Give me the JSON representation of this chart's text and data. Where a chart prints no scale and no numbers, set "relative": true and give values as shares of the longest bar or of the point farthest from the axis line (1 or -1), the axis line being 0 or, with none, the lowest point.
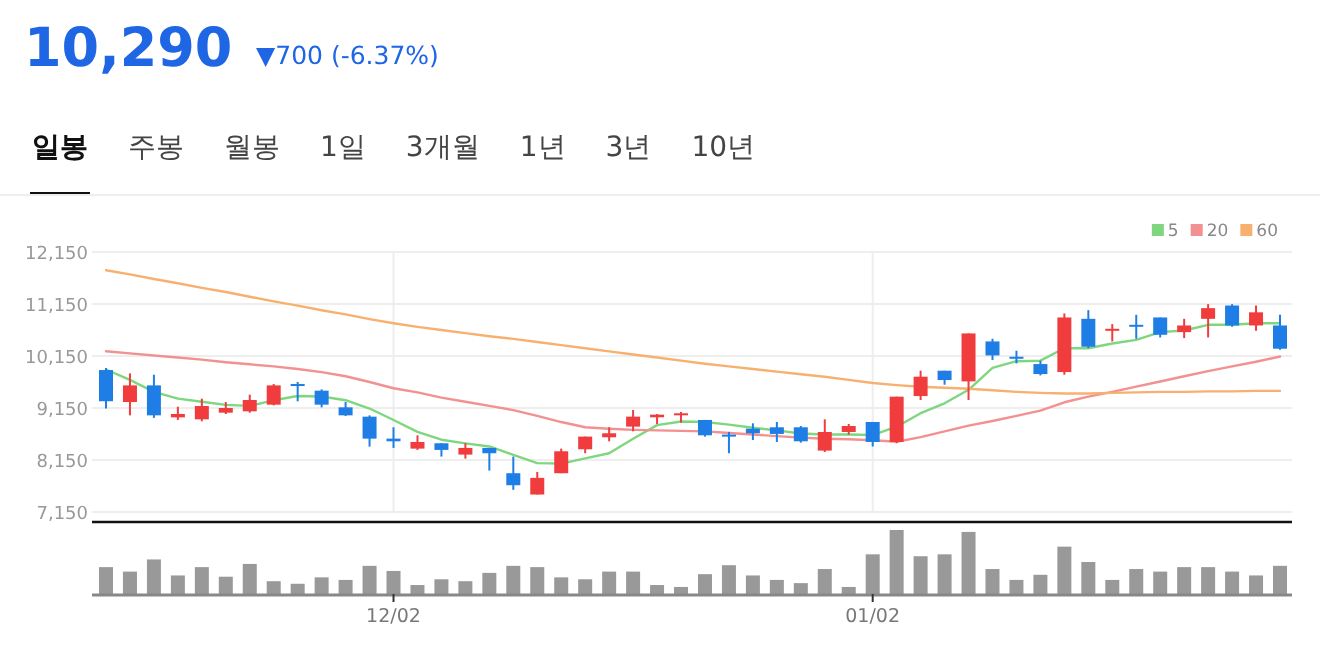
{
  "chart_data": [
    {
      "type": "candlestick",
      "title": "10,290",
      "subtitle": "▼700 (-6.37%)",
      "annotations": [
        "일봉",
        "주봉",
        "월봉",
        "1일",
        "3개월",
        "1년",
        "3년",
        "10년"
      ],
      "categories": [
        null,
        null,
        null,
        null,
        null,
        null,
        null,
        null,
        null,
        null,
        null,
        null,
        null,
        null,
        null,
        null,
        null,
        null,
        null,
        null,
        null,
        null,
        null,
        null,
        null,
        null,
        null,
        null,
        null,
        null,
        null,
        null,
        null,
        null,
        null,
        null,
        null,
        null,
        null,
        null,
        null,
        null,
        null,
        null,
        null,
        null,
        null,
        null,
        null,
        null
      ],
      "ohlc": [
        [
          9880,
          9920,
          9140,
          9280
        ],
        [
          9265,
          9816,
          9009,
          9585
        ],
        [
          9585,
          9790,
          8960,
          9009
        ],
        [
          8970,
          9175,
          8920,
          9035
        ],
        [
          8932,
          9330,
          8894,
          9188
        ],
        [
          9060,
          9265,
          9035,
          9150
        ],
        [
          9086,
          9406,
          9060,
          9304
        ],
        [
          9214,
          9611,
          9200,
          9585
        ],
        [
          9611,
          9650,
          9278,
          9585
        ],
        [
          9483,
          9508,
          9163,
          9214
        ],
        [
          9163,
          9265,
          8996,
          9009
        ],
        [
          8983,
          9009,
          8408,
          8561
        ],
        [
          8561,
          8779,
          8382,
          8510
        ],
        [
          8369,
          8625,
          8344,
          8497
        ],
        [
          8472,
          8472,
          8216,
          8344
        ],
        [
          8254,
          8472,
          8177,
          8382
        ],
        [
          8382,
          8382,
          7947,
          8280
        ],
        [
          7896,
          8216,
          7576,
          7665
        ],
        [
          7486,
          7921,
          7486,
          7806
        ],
        [
          7896,
          8369,
          7896,
          8318
        ],
        [
          8356,
          8600,
          8280,
          8600
        ],
        [
          8587,
          8779,
          8510,
          8664
        ],
        [
          8792,
          9112,
          8702,
          8984
        ],
        [
          8971,
          9035,
          8843,
          9022
        ],
        [
          9010,
          9073,
          8868,
          9048
        ],
        [
          8920,
          8920,
          8600,
          8625
        ],
        [
          8638,
          8690,
          8280,
          8600
        ],
        [
          8753,
          8856,
          8535,
          8664
        ],
        [
          8779,
          8881,
          8497,
          8651
        ],
        [
          8779,
          8804,
          8484,
          8510
        ],
        [
          8331,
          8932,
          8305,
          8689
        ],
        [
          8689,
          8843,
          8638,
          8804
        ],
        [
          8881,
          8881,
          8408,
          8497
        ],
        [
          8497,
          9368,
          8472,
          9368
        ],
        [
          9380,
          9867,
          9304,
          9752
        ],
        [
          9867,
          9867,
          9598,
          9688
        ],
        [
          9662,
          10584,
          9304,
          10584
        ],
        [
          10430,
          10481,
          10072,
          10161
        ],
        [
          10136,
          10251,
          10008,
          10097
        ],
        [
          9995,
          10059,
          9777,
          9803
        ],
        [
          9841,
          10968,
          9790,
          10891
        ],
        [
          10865,
          11032,
          10302,
          10328
        ],
        [
          10635,
          10763,
          10430,
          10673
        ],
        [
          10750,
          10942,
          10481,
          10712
        ],
        [
          10891,
          10891,
          10507,
          10558
        ],
        [
          10609,
          10865,
          10494,
          10737
        ],
        [
          10865,
          11147,
          10507,
          11070
        ],
        [
          11121,
          11147,
          10712,
          10737
        ],
        [
          10737,
          11121,
          10635,
          10990
        ],
        [
          10737,
          10942,
          10270,
          10290
        ]
      ],
      "colors": [
        "#1e7ee6",
        "#f03c3c",
        "#1e7ee6",
        "#f03c3c",
        "#f03c3c",
        "#f03c3c",
        "#f03c3c",
        "#f03c3c",
        "#1e7ee6",
        "#1e7ee6",
        "#1e7ee6",
        "#1e7ee6",
        "#1e7ee6",
        "#f03c3c",
        "#1e7ee6",
        "#f03c3c",
        "#1e7ee6",
        "#1e7ee6",
        "#f03c3c",
        "#f03c3c",
        "#f03c3c",
        "#f03c3c",
        "#f03c3c",
        "#f03c3c",
        "#f03c3c",
        "#1e7ee6",
        "#1e7ee6",
        "#1e7ee6",
        "#1e7ee6",
        "#1e7ee6",
        "#f03c3c",
        "#f03c3c",
        "#1e7ee6",
        "#f03c3c",
        "#f03c3c",
        "#1e7ee6",
        "#f03c3c",
        "#1e7ee6",
        "#1e7ee6",
        "#1e7ee6",
        "#f03c3c",
        "#1e7ee6",
        "#f03c3c",
        "#1e7ee6",
        "#1e7ee6",
        "#f03c3c",
        "#f03c3c",
        "#1e7ee6",
        "#f03c3c",
        "#1e7ee6"
      ],
      "series": [
        {
          "type": "line",
          "name": "5",
          "color": "#7ed67e",
          "values": [
            9890,
            9690,
            9460,
            9330,
            9270,
            9210,
            9190,
            9300,
            9380,
            9370,
            9300,
            9140,
            8920,
            8690,
            8540,
            8470,
            8410,
            8250,
            8090,
            8080,
            8180,
            8280,
            8560,
            8820,
            8890,
            8880,
            8830,
            8770,
            8720,
            8660,
            8640,
            8640,
            8630,
            8790,
            9050,
            9240,
            9500,
            9920,
            10050,
            10060,
            10300,
            10300,
            10390,
            10460,
            10610,
            10640,
            10750,
            10750,
            10780,
            10780
          ]
        },
        {
          "type": "line",
          "name": "20",
          "color": "#f39090",
          "values": [
            10240,
            10200,
            10160,
            10120,
            10080,
            10030,
            9990,
            9950,
            9900,
            9840,
            9760,
            9650,
            9530,
            9450,
            9350,
            9270,
            9190,
            9110,
            9000,
            8880,
            8780,
            8750,
            8730,
            8720,
            8710,
            8700,
            8670,
            8640,
            8610,
            8580,
            8560,
            8550,
            8530,
            8500,
            8590,
            8700,
            8810,
            8900,
            9000,
            9100,
            9260,
            9370,
            9460,
            9560,
            9660,
            9760,
            9860,
            9950,
            10040,
            10140
          ]
        },
        {
          "type": "line",
          "name": "60",
          "color": "#f7b070",
          "values": [
            11800,
            11720,
            11630,
            11550,
            11460,
            11380,
            11290,
            11200,
            11120,
            11030,
            10950,
            10860,
            10780,
            10710,
            10650,
            10590,
            10530,
            10480,
            10420,
            10360,
            10300,
            10240,
            10180,
            10120,
            10060,
            10000,
            9950,
            9900,
            9850,
            9800,
            9750,
            9690,
            9630,
            9590,
            9560,
            9540,
            9520,
            9490,
            9460,
            9440,
            9430,
            9430,
            9440,
            9450,
            9460,
            9460,
            9470,
            9470,
            9480,
            9480
          ]
        }
      ],
      "ylim": [
        7150,
        12150
      ],
      "yticks": [
        {
          "value": 7150,
          "label": "7,150"
        },
        {
          "value": 8150,
          "label": "8,150"
        },
        {
          "value": 9150,
          "label": "9,150"
        },
        {
          "value": 10150,
          "label": "10,150"
        },
        {
          "value": 11150,
          "label": "11,150"
        },
        {
          "value": 12150,
          "label": "12,150"
        }
      ],
      "grid": true,
      "legend": "top right"
    },
    {
      "type": "bar",
      "relative": true,
      "color": "#999999",
      "categories": [
        null,
        null,
        null,
        null,
        null,
        null,
        null,
        null,
        null,
        null,
        null,
        null,
        "12/02",
        null,
        null,
        null,
        null,
        null,
        null,
        null,
        null,
        null,
        null,
        null,
        null,
        null,
        null,
        null,
        null,
        null,
        null,
        null,
        "01/02",
        null,
        null,
        null,
        null,
        null,
        null,
        null,
        null,
        null,
        null,
        null,
        null,
        null,
        null,
        null,
        null,
        null
      ],
      "values": [
        0.42,
        0.35,
        0.54,
        0.29,
        0.42,
        0.27,
        0.47,
        0.2,
        0.16,
        0.26,
        0.22,
        0.44,
        0.36,
        0.14,
        0.23,
        0.2,
        0.33,
        0.44,
        0.42,
        0.26,
        0.23,
        0.35,
        0.35,
        0.14,
        0.11,
        0.31,
        0.45,
        0.29,
        0.22,
        0.17,
        0.39,
        0.11,
        0.62,
        1,
        0.59,
        0.62,
        0.97,
        0.39,
        0.22,
        0.3,
        0.74,
        0.5,
        0.22,
        0.39,
        0.35,
        0.42,
        0.42,
        0.35,
        0.29,
        0.44
      ]
    }
  ]
}
